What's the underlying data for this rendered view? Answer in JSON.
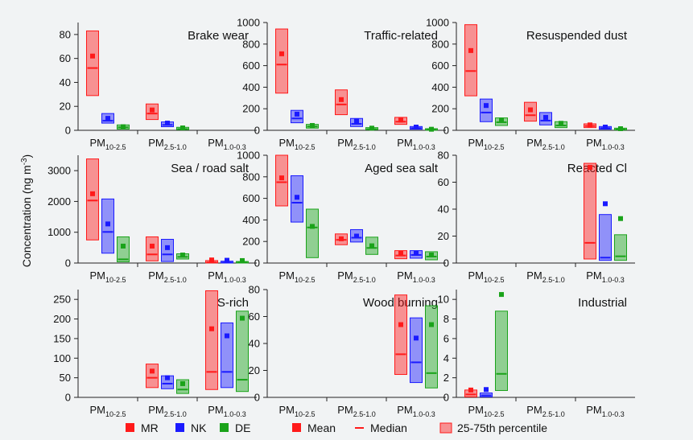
{
  "chart_data": {
    "type": "box",
    "ylabel_main": "Concentration (ng m",
    "ylabel_unit_exp": "-3",
    "ylabel_close": ")",
    "categories": [
      {
        "main": "PM",
        "sub": "10-2.5"
      },
      {
        "main": "PM",
        "sub": "2.5-1.0"
      },
      {
        "main": "PM",
        "sub": "1.0-0.3"
      }
    ],
    "series_colors": {
      "MR": "#ff1a1a",
      "NK": "#1a1aff",
      "DE": "#1aa31a"
    },
    "legend": [
      {
        "kind": "square",
        "series": "MR",
        "label": "MR"
      },
      {
        "kind": "square",
        "series": "NK",
        "label": "NK"
      },
      {
        "kind": "square",
        "series": "DE",
        "label": "DE"
      },
      {
        "kind": "mean",
        "label": "Mean"
      },
      {
        "kind": "median",
        "label": "Median"
      },
      {
        "kind": "box",
        "label": "25-75th percentile"
      }
    ],
    "panels": [
      {
        "title": "Brake wear",
        "ylim": [
          0,
          90
        ],
        "yticks": [
          0,
          20,
          40,
          60,
          80
        ],
        "groups": [
          [
            {
              "series": "MR",
              "q1": 29,
              "median": 52,
              "q3": 83,
              "mean": 62
            },
            {
              "series": "NK",
              "q1": 6,
              "median": 8,
              "q3": 14,
              "mean": 10
            },
            {
              "series": "DE",
              "q1": 1,
              "median": 2.5,
              "q3": 4.5,
              "mean": 3
            }
          ],
          [
            {
              "series": "MR",
              "q1": 9,
              "median": 14,
              "q3": 22,
              "mean": 17
            },
            {
              "series": "NK",
              "q1": 3,
              "median": 4.5,
              "q3": 7,
              "mean": 6
            },
            {
              "series": "DE",
              "q1": 0.5,
              "median": 1,
              "q3": 2.5,
              "mean": 2
            }
          ],
          []
        ]
      },
      {
        "title": "Traffic-related",
        "ylim": [
          0,
          1000
        ],
        "yticks": [
          0,
          200,
          400,
          600,
          800,
          1000
        ],
        "groups": [
          [
            {
              "series": "MR",
              "q1": 345,
              "median": 610,
              "q3": 940,
              "mean": 710
            },
            {
              "series": "NK",
              "q1": 70,
              "median": 110,
              "q3": 185,
              "mean": 150
            },
            {
              "series": "DE",
              "q1": 20,
              "median": 35,
              "q3": 55,
              "mean": 45
            }
          ],
          [
            {
              "series": "MR",
              "q1": 145,
              "median": 240,
              "q3": 375,
              "mean": 285
            },
            {
              "series": "NK",
              "q1": 35,
              "median": 60,
              "q3": 110,
              "mean": 85
            },
            {
              "series": "DE",
              "q1": 5,
              "median": 10,
              "q3": 25,
              "mean": 20
            }
          ],
          [
            {
              "series": "MR",
              "q1": 55,
              "median": 80,
              "q3": 120,
              "mean": 95
            },
            {
              "series": "NK",
              "q1": 10,
              "median": 20,
              "q3": 35,
              "mean": 30
            },
            {
              "series": "DE",
              "q1": 2,
              "median": 5,
              "q3": 15,
              "mean": 10
            }
          ]
        ]
      },
      {
        "title": "Resuspended dust",
        "ylim": [
          0,
          1000
        ],
        "yticks": [
          0,
          200,
          400,
          600,
          800,
          1000
        ],
        "groups": [
          [
            {
              "series": "MR",
              "q1": 320,
              "median": 550,
              "q3": 980,
              "mean": 740
            },
            {
              "series": "NK",
              "q1": 80,
              "median": 165,
              "q3": 290,
              "mean": 230
            },
            {
              "series": "DE",
              "q1": 45,
              "median": 75,
              "q3": 115,
              "mean": 95
            }
          ],
          [
            {
              "series": "MR",
              "q1": 85,
              "median": 140,
              "q3": 260,
              "mean": 190
            },
            {
              "series": "NK",
              "q1": 50,
              "median": 90,
              "q3": 165,
              "mean": 120
            },
            {
              "series": "DE",
              "q1": 25,
              "median": 45,
              "q3": 80,
              "mean": 65
            }
          ],
          [
            {
              "series": "MR",
              "q1": 25,
              "median": 40,
              "q3": 60,
              "mean": 50
            },
            {
              "series": "NK",
              "q1": 10,
              "median": 20,
              "q3": 35,
              "mean": 30
            },
            {
              "series": "DE",
              "q1": 3,
              "median": 8,
              "q3": 20,
              "mean": 15
            }
          ]
        ]
      },
      {
        "title": "Sea / road salt",
        "ylim": [
          0,
          3500
        ],
        "yticks": [
          0,
          1000,
          2000,
          3000
        ],
        "groups": [
          [
            {
              "series": "MR",
              "q1": 750,
              "median": 2030,
              "q3": 3380,
              "mean": 2250
            },
            {
              "series": "NK",
              "q1": 320,
              "median": 1010,
              "q3": 2080,
              "mean": 1270
            },
            {
              "series": "DE",
              "q1": 40,
              "median": 120,
              "q3": 850,
              "mean": 550
            }
          ],
          [
            {
              "series": "MR",
              "q1": 70,
              "median": 280,
              "q3": 850,
              "mean": 550
            },
            {
              "series": "NK",
              "q1": 50,
              "median": 280,
              "q3": 770,
              "mean": 500
            },
            {
              "series": "DE",
              "q1": 130,
              "median": 200,
              "q3": 300,
              "mean": 260
            }
          ],
          [
            {
              "series": "MR",
              "q1": 5,
              "median": 20,
              "q3": 80,
              "mean": 100
            },
            {
              "series": "NK",
              "q1": 5,
              "median": 15,
              "q3": 60,
              "mean": 90
            },
            {
              "series": "DE",
              "q1": 5,
              "median": 15,
              "q3": 50,
              "mean": 80
            }
          ]
        ]
      },
      {
        "title": "Aged sea salt",
        "ylim": [
          0,
          1000
        ],
        "yticks": [
          0,
          200,
          400,
          600,
          800,
          1000
        ],
        "groups": [
          [
            {
              "series": "MR",
              "q1": 530,
              "median": 750,
              "q3": 1000,
              "mean": 790
            },
            {
              "series": "NK",
              "q1": 380,
              "median": 560,
              "q3": 810,
              "mean": 610
            },
            {
              "series": "DE",
              "q1": 50,
              "median": 330,
              "q3": 500,
              "mean": 340
            }
          ],
          [
            {
              "series": "MR",
              "q1": 170,
              "median": 215,
              "q3": 270,
              "mean": 225
            },
            {
              "series": "NK",
              "q1": 195,
              "median": 235,
              "q3": 310,
              "mean": 250
            },
            {
              "series": "DE",
              "q1": 80,
              "median": 140,
              "q3": 240,
              "mean": 160
            }
          ],
          [
            {
              "series": "MR",
              "q1": 40,
              "median": 70,
              "q3": 115,
              "mean": 90
            },
            {
              "series": "NK",
              "q1": 45,
              "median": 75,
              "q3": 115,
              "mean": 90
            },
            {
              "series": "DE",
              "q1": 30,
              "median": 60,
              "q3": 105,
              "mean": 75
            }
          ]
        ]
      },
      {
        "title": "Reacted Cl",
        "ylim": [
          0,
          80
        ],
        "yticks": [
          0,
          20,
          40,
          60,
          80
        ],
        "groups": [
          [],
          [],
          [
            {
              "series": "MR",
              "q1": 3,
              "median": 15,
              "q3": 74,
              "mean": 71
            },
            {
              "series": "NK",
              "q1": 2,
              "median": 4,
              "q3": 36,
              "mean": 44
            },
            {
              "series": "DE",
              "q1": 2,
              "median": 5,
              "q3": 21,
              "mean": 33
            }
          ]
        ]
      },
      {
        "title": "S-rich",
        "ylim": [
          0,
          275
        ],
        "yticks": [
          0,
          50,
          100,
          150,
          200,
          250
        ],
        "groups": [
          [],
          [
            {
              "series": "MR",
              "q1": 25,
              "median": 50,
              "q3": 85,
              "mean": 67
            },
            {
              "series": "NK",
              "q1": 22,
              "median": 35,
              "q3": 55,
              "mean": 50
            },
            {
              "series": "DE",
              "q1": 10,
              "median": 20,
              "q3": 45,
              "mean": 35
            }
          ],
          [
            {
              "series": "MR",
              "q1": 20,
              "median": 65,
              "q3": 272,
              "mean": 175
            },
            {
              "series": "NK",
              "q1": 25,
              "median": 65,
              "q3": 190,
              "mean": 157
            },
            {
              "series": "DE",
              "q1": 15,
              "median": 45,
              "q3": 220,
              "mean": 202
            }
          ]
        ]
      },
      {
        "title": "Wood burning",
        "ylim": [
          0,
          80
        ],
        "yticks": [
          0,
          20,
          40,
          60,
          80
        ],
        "groups": [
          [],
          [],
          [
            {
              "series": "MR",
              "q1": 17,
              "median": 32,
              "q3": 76,
              "mean": 54
            },
            {
              "series": "NK",
              "q1": 11,
              "median": 26,
              "q3": 59,
              "mean": 44
            },
            {
              "series": "DE",
              "q1": 7,
              "median": 18,
              "q3": 68,
              "mean": 54
            }
          ]
        ]
      },
      {
        "title": "Industrial",
        "ylim": [
          0,
          11
        ],
        "yticks": [
          0,
          2,
          4,
          6,
          8,
          10
        ],
        "groups": [
          [
            {
              "series": "MR",
              "q1": 0.05,
              "median": 0.3,
              "q3": 0.75,
              "mean": 0.75
            },
            {
              "series": "NK",
              "q1": 0.05,
              "median": 0.2,
              "q3": 0.45,
              "mean": 0.8
            },
            {
              "series": "DE",
              "q1": 0.7,
              "median": 2.4,
              "q3": 8.8,
              "mean": 10.5
            }
          ],
          [],
          []
        ]
      }
    ]
  }
}
